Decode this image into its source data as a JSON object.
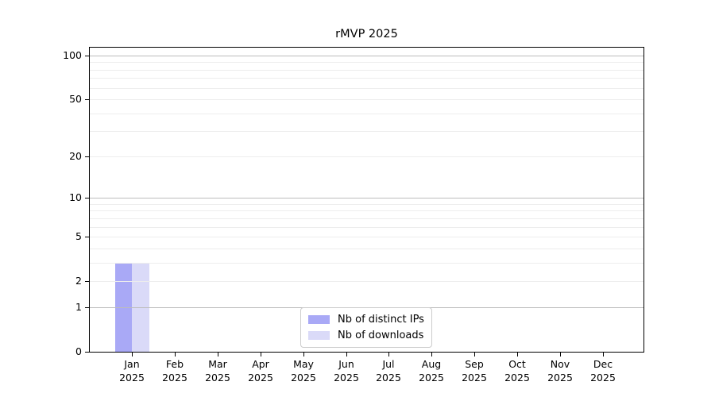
{
  "chart_data": {
    "type": "bar",
    "title": "rMVP 2025",
    "scale": "log1p",
    "year": "2025",
    "months": [
      "Jan",
      "Feb",
      "Mar",
      "Apr",
      "May",
      "Jun",
      "Jul",
      "Aug",
      "Sep",
      "Oct",
      "Nov",
      "Dec"
    ],
    "series": [
      {
        "name": "Nb of distinct IPs",
        "color": "#a9a9f6",
        "values": [
          3,
          null,
          null,
          null,
          null,
          null,
          null,
          null,
          null,
          null,
          null,
          null
        ]
      },
      {
        "name": "Nb of downloads",
        "color": "#dadaf8",
        "values": [
          3,
          null,
          null,
          null,
          null,
          null,
          null,
          null,
          null,
          null,
          null,
          null
        ]
      }
    ],
    "y_ticks": [
      0,
      1,
      2,
      5,
      10,
      20,
      50,
      100
    ],
    "major_gridlines": [
      1,
      10,
      100
    ],
    "minor_gridlines": [
      2,
      3,
      4,
      5,
      6,
      7,
      8,
      9,
      20,
      30,
      40,
      50,
      60,
      70,
      80,
      90
    ],
    "ylim": [
      0,
      113
    ],
    "grid_major_color": "#bcbcbc",
    "grid_minor_color": "#ededed",
    "legend_position": "lower center",
    "legend_entries": [
      "Nb of distinct IPs",
      "Nb of downloads"
    ]
  }
}
